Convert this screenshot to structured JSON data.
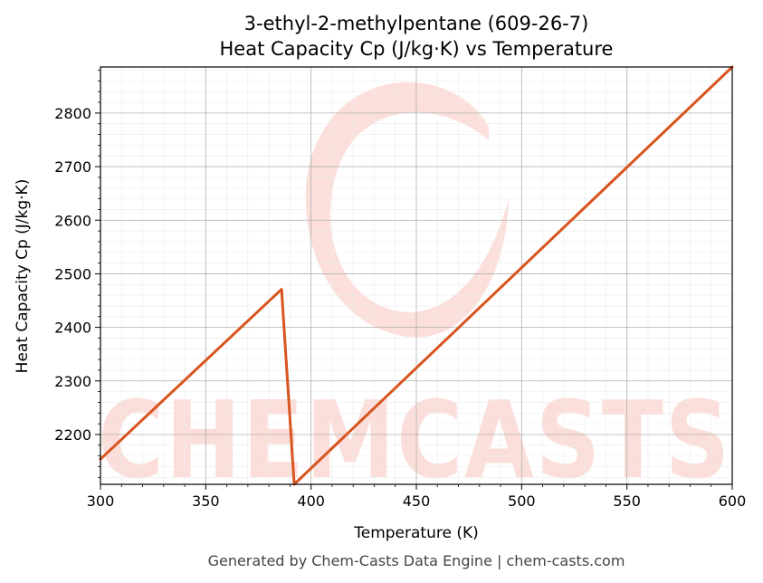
{
  "chart_data": {
    "type": "line",
    "title_line1": "3-ethyl-2-methylpentane (609-26-7)",
    "title_line2": "Heat Capacity Cp (J/kg·K) vs Temperature",
    "xlabel": "Temperature (K)",
    "ylabel": "Heat Capacity Cp (J/kg·K)",
    "xlim": [
      300,
      600
    ],
    "ylim": [
      2107,
      2886
    ],
    "xticks": [
      300,
      350,
      400,
      450,
      500,
      550,
      600
    ],
    "yticks": [
      2200,
      2300,
      2400,
      2500,
      2600,
      2700,
      2800
    ],
    "grid": true,
    "series": [
      {
        "color": "#d9541e",
        "x": [
          300,
          386,
          392,
          600
        ],
        "y": [
          2154,
          2471,
          2107,
          2886
        ]
      }
    ]
  },
  "watermark": {
    "text": "CHEMCASTS",
    "color": "#fbd9d3"
  },
  "footer": "Generated by Chem-Casts Data Engine | chem-casts.com"
}
